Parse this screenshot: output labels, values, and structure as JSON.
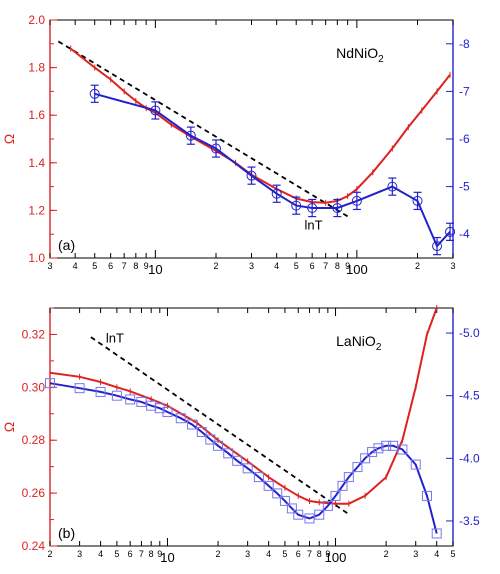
{
  "chart_data": [
    {
      "type": "line",
      "panel_label": "(a)",
      "annotation": "NdNiO",
      "annotation_sub": "2",
      "trend_label": "lnT",
      "ylabel": "Ω",
      "xlabel": "",
      "x_scale": "log",
      "xlim": [
        3,
        300
      ],
      "ylim": [
        1.0,
        2.0
      ],
      "y2lim": [
        -3.5,
        -8.5
      ],
      "grid": false,
      "colors": {
        "left_axis": "#dd2222",
        "right_axis": "#2222cc",
        "trend": "#000000"
      },
      "x_major_ticks": [
        10,
        100
      ],
      "x_minor_ticks": [
        3,
        4,
        5,
        6,
        7,
        8,
        9,
        20,
        30,
        40,
        50,
        60,
        70,
        80,
        90,
        200,
        300
      ],
      "x_tick_labels": [
        "3",
        "4",
        "5",
        "6",
        "7",
        "8",
        "9",
        "10",
        "2",
        "3",
        "4",
        "5",
        "6",
        "7",
        "8",
        "9",
        "100",
        "2",
        "3"
      ],
      "y_ticks": [
        "1.0",
        "1.2",
        "1.4",
        "1.6",
        "1.8",
        "2.0"
      ],
      "y2_ticks": [
        "-4",
        "-5",
        "-6",
        "-7",
        "-8"
      ],
      "trend_line": {
        "x": [
          3.3,
          92
        ],
        "y": [
          1.91,
          1.17
        ]
      },
      "series": [
        {
          "axis": "left",
          "marker": "tick",
          "x": [
            3.8,
            5,
            6,
            7,
            8,
            9,
            10,
            12,
            15,
            20,
            25,
            30,
            40,
            50,
            60,
            70,
            80,
            90,
            100,
            120,
            150,
            180,
            210,
            250,
            290
          ],
          "y": [
            1.88,
            1.8,
            1.75,
            1.7,
            1.66,
            1.63,
            1.61,
            1.56,
            1.51,
            1.45,
            1.4,
            1.35,
            1.29,
            1.25,
            1.235,
            1.232,
            1.24,
            1.26,
            1.29,
            1.36,
            1.46,
            1.55,
            1.62,
            1.7,
            1.77
          ]
        },
        {
          "axis": "right",
          "marker": "circle",
          "x": [
            5,
            10,
            15,
            20,
            30,
            40,
            50,
            60,
            80,
            100,
            150,
            200,
            250,
            290
          ],
          "y": [
            -6.95,
            -6.6,
            -6.07,
            -5.8,
            -5.23,
            -4.85,
            -4.6,
            -4.55,
            -4.55,
            -4.7,
            -5.0,
            -4.7,
            -3.75,
            -4.05
          ],
          "err": [
            0.18,
            0.18,
            0.18,
            0.18,
            0.18,
            0.18,
            0.18,
            0.18,
            0.18,
            0.18,
            0.18,
            0.18,
            0.18,
            0.18
          ]
        }
      ]
    },
    {
      "type": "line",
      "panel_label": "(b)",
      "annotation": "LaNiO",
      "annotation_sub": "2",
      "trend_label": "lnT",
      "ylabel": "Ω",
      "xlabel": "",
      "x_scale": "log",
      "xlim": [
        2,
        500
      ],
      "ylim": [
        0.24,
        0.33
      ],
      "y2lim": [
        -3.3,
        -5.2
      ],
      "grid": false,
      "colors": {
        "left_axis": "#dd2222",
        "right_axis": "#2222cc",
        "trend": "#000000"
      },
      "x_major_ticks": [
        10,
        100
      ],
      "x_minor_ticks": [
        2,
        3,
        4,
        5,
        6,
        7,
        8,
        9,
        20,
        30,
        40,
        50,
        60,
        70,
        80,
        90,
        200,
        300,
        400,
        500
      ],
      "x_tick_labels": [
        "2",
        "3",
        "4",
        "5",
        "6",
        "7",
        "8",
        "9",
        "10",
        "2",
        "3",
        "4",
        "5",
        "6",
        "7",
        "8",
        "9",
        "100",
        "2",
        "3",
        "4",
        "5"
      ],
      "y_ticks": [
        "0.24",
        "0.26",
        "0.28",
        "0.30",
        "0.32"
      ],
      "y2_ticks": [
        "-3.5",
        "-4.0",
        "-4.5",
        "-5.0"
      ],
      "trend_line": {
        "x": [
          3.5,
          120
        ],
        "y": [
          0.319,
          0.252
        ]
      },
      "series": [
        {
          "axis": "left",
          "marker": "tick",
          "x": [
            2,
            3,
            4,
            5,
            6,
            8,
            10,
            15,
            20,
            30,
            40,
            50,
            60,
            70,
            80,
            100,
            120,
            150,
            200,
            250,
            300,
            350,
            400
          ],
          "y": [
            0.3055,
            0.304,
            0.302,
            0.3,
            0.2985,
            0.2955,
            0.293,
            0.2865,
            0.28,
            0.272,
            0.266,
            0.262,
            0.259,
            0.257,
            0.2565,
            0.256,
            0.256,
            0.259,
            0.266,
            0.28,
            0.3,
            0.32,
            0.33
          ]
        },
        {
          "axis": "right",
          "marker": "square",
          "x": [
            2,
            3,
            4,
            5,
            6,
            7,
            8,
            9,
            10,
            12,
            14,
            16,
            18,
            20,
            23,
            26,
            30,
            35,
            40,
            45,
            50,
            55,
            60,
            70,
            80,
            90,
            100,
            110,
            120,
            135,
            150,
            165,
            180,
            200,
            220,
            250,
            300,
            350,
            400
          ],
          "y": [
            -4.6,
            -4.56,
            -4.53,
            -4.5,
            -4.47,
            -4.45,
            -4.42,
            -4.4,
            -4.37,
            -4.32,
            -4.27,
            -4.21,
            -4.15,
            -4.1,
            -4.04,
            -3.98,
            -3.92,
            -3.85,
            -3.78,
            -3.72,
            -3.66,
            -3.6,
            -3.55,
            -3.52,
            -3.55,
            -3.62,
            -3.7,
            -3.78,
            -3.85,
            -3.93,
            -4.0,
            -4.05,
            -4.08,
            -4.1,
            -4.1,
            -4.07,
            -3.95,
            -3.7,
            -3.4
          ]
        }
      ]
    }
  ]
}
